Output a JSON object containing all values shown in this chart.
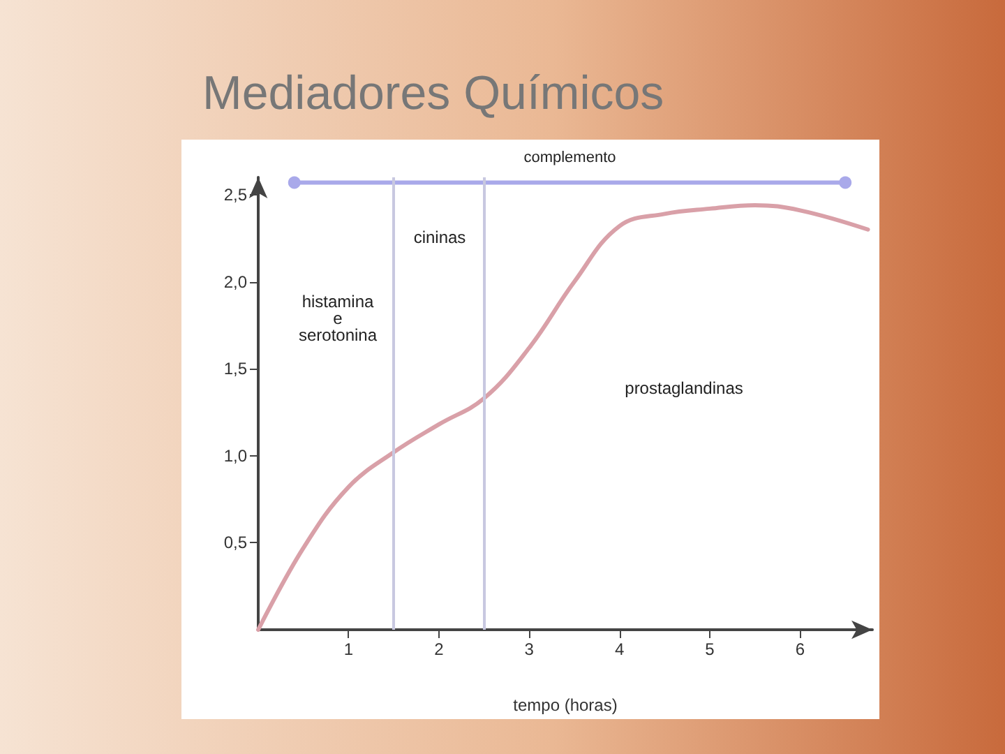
{
  "chart_data": {
    "type": "line",
    "title": "Mediadores Químicos",
    "xlabel": "tempo (horas)",
    "x": [
      0,
      0.5,
      1,
      1.5,
      2,
      2.5,
      3,
      3.5,
      4,
      4.5,
      5,
      5.5,
      6,
      6.75
    ],
    "series": [
      {
        "color": "#d9a0a8",
        "values": [
          0,
          0.47,
          0.82,
          1.02,
          1.18,
          1.33,
          1.62,
          2.0,
          2.32,
          2.39,
          2.42,
          2.44,
          2.41,
          2.3
        ]
      },
      {
        "name": "complemento",
        "color": "#a9a9ea",
        "x": [
          0.4,
          6.5
        ],
        "values": [
          2.57,
          2.57
        ],
        "marker": "circle"
      }
    ],
    "xlim": [
      0,
      6.8
    ],
    "xticks": [
      1,
      2,
      3,
      4,
      5,
      6
    ],
    "ylim": [
      0,
      2.6
    ],
    "yticks": [
      {
        "value": 0.5,
        "label": "0,5"
      },
      {
        "value": 1,
        "label": "1,0"
      },
      {
        "value": 1.5,
        "label": "1,5"
      },
      {
        "value": 2,
        "label": "2,0"
      },
      {
        "value": 2.5,
        "label": "2,5"
      }
    ],
    "ref_lines": [
      {
        "axis": "x",
        "value": 1.5,
        "color": "#c8c8e0"
      },
      {
        "axis": "x",
        "value": 2.5,
        "color": "#c8c8e0"
      }
    ],
    "annotations": [
      "histamina\ne\nserotonina",
      "cininas",
      "prostaglandinas"
    ],
    "grid": false,
    "marker": "none",
    "line_style": "solid"
  }
}
